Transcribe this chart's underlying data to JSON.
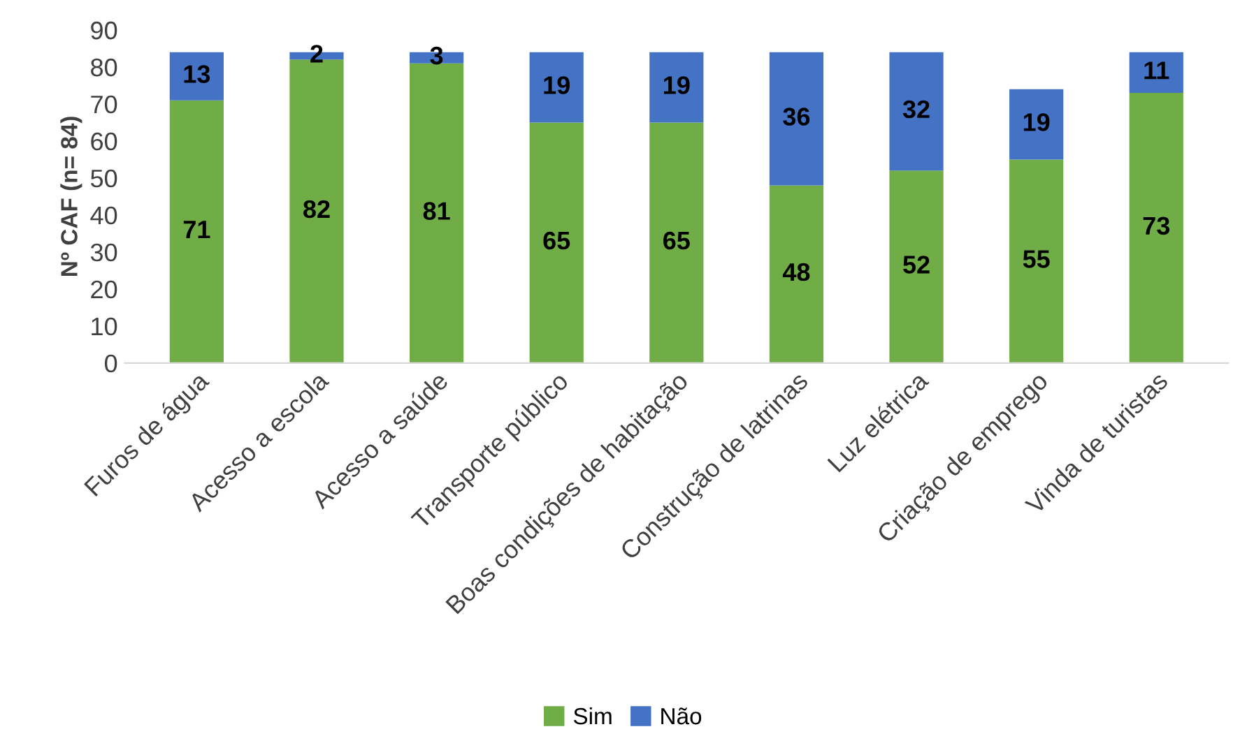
{
  "chart_data": {
    "type": "bar",
    "stacked": true,
    "ylabel": "Nº CAF (n= 84)",
    "categories": [
      "Furos de água",
      "Acesso a escola",
      "Acesso a saúde",
      "Transporte público",
      "Boas condições de habitação",
      "Construção de latrinas",
      "Luz elétrica",
      "Criação de emprego",
      "Vinda de turistas"
    ],
    "series": [
      {
        "name": "Sim",
        "color": "#70ad47",
        "values": [
          71,
          82,
          81,
          65,
          65,
          48,
          52,
          55,
          73
        ]
      },
      {
        "name": "Não",
        "color": "#4472c4",
        "values": [
          13,
          2,
          3,
          19,
          19,
          36,
          32,
          19,
          11
        ]
      }
    ],
    "ylim": [
      0,
      90
    ],
    "yticks": [
      0,
      10,
      20,
      30,
      40,
      50,
      60,
      70,
      80,
      90
    ],
    "grid": false,
    "legend": "bottom",
    "data_labels": true
  }
}
